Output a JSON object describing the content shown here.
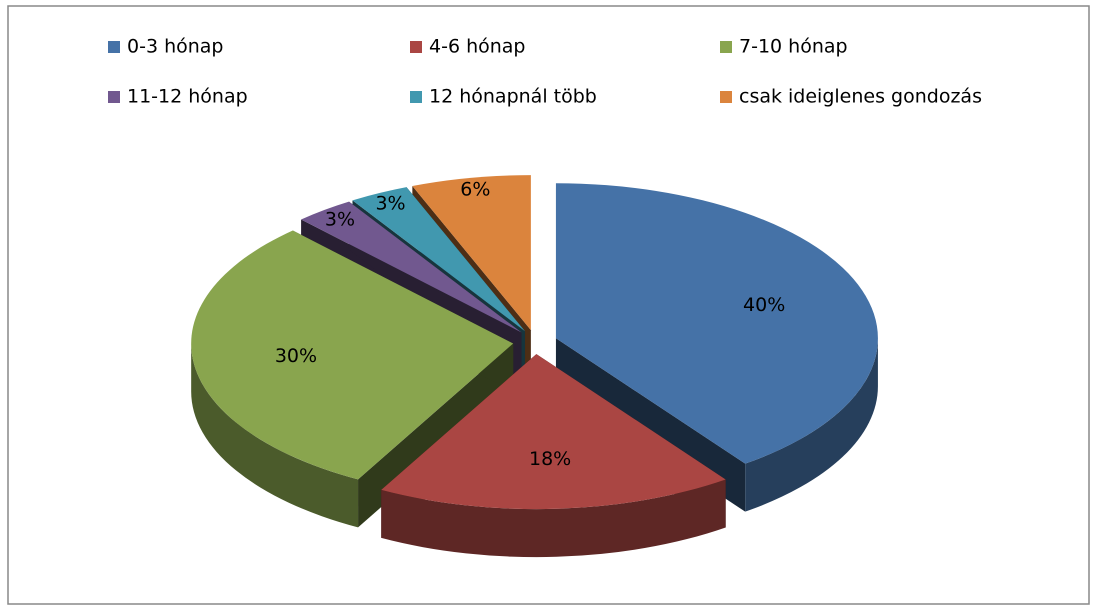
{
  "chart_data": {
    "type": "pie3d",
    "categories": [
      "0-3 hónap",
      "4-6 hónap",
      "7-10 hónap",
      "11-12 hónap",
      "12 hónapnál több",
      "csak ideiglenes gondozás"
    ],
    "values": [
      40,
      18,
      30,
      3,
      3,
      6
    ],
    "value_labels": [
      "40%",
      "18%",
      "30%",
      "3%",
      "3%",
      "6%"
    ],
    "colors": [
      "#4572a7",
      "#aa4643",
      "#89a54e",
      "#71588f",
      "#4198af",
      "#db843d"
    ],
    "legend": "top"
  }
}
